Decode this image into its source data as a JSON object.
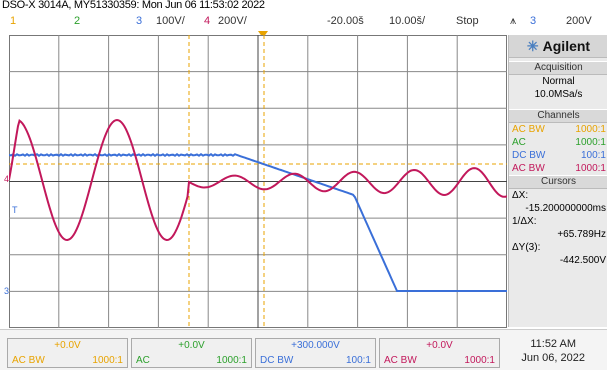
{
  "header": {
    "instrument_line": "DSO-X 3014A, MY51330359: Mon Jun 06 11:53:02 2022"
  },
  "statusbar": {
    "ch1_num": "1",
    "ch2_num": "2",
    "ch3_num": "3",
    "ch3_scale": "100V/",
    "ch4_num": "4",
    "ch4_scale": "200V/",
    "time_delay": "-20.00š",
    "time_scale": "10.00š/",
    "run_state": "Stop",
    "trig_icon": "⩚",
    "trig_source": "3",
    "trig_level": "200V"
  },
  "colors": {
    "ch1": "#e8a300",
    "ch2": "#2ca02c",
    "ch3": "#3a6fd8",
    "ch4": "#c2185b"
  },
  "screen_markers": {
    "ch4_marker": "4",
    "trig_t_marker": "T",
    "ch3_marker": "3"
  },
  "panel": {
    "brand": "Agilent",
    "brand_icon": "sparkle-icon",
    "acquisition_title": "Acquisition",
    "acq_mode": "Normal",
    "acq_rate": "10.0MSa/s",
    "channels_title": "Channels",
    "channels": [
      {
        "coupling": "AC BW",
        "probe": "1000:1",
        "color": "#e8a300"
      },
      {
        "coupling": "AC",
        "probe": "1000:1",
        "color": "#2ca02c"
      },
      {
        "coupling": "DC BW",
        "probe": "100:1",
        "color": "#3a6fd8"
      },
      {
        "coupling": "AC BW",
        "probe": "1000:1",
        "color": "#c2185b"
      }
    ],
    "cursors_title": "Cursors",
    "dx_label": "ΔX:",
    "dx_value": "-15.200000000ms",
    "inv_dx_label": "1/ΔX:",
    "inv_dx_value": "+65.789Hz",
    "dy_label": "ΔY(3):",
    "dy_value": "-442.500V"
  },
  "bottom": {
    "channels": [
      {
        "offset": "+0.0V",
        "coupling": "AC  BW",
        "probe": "1000:1",
        "color": "#e8a300"
      },
      {
        "offset": "+0.0V",
        "coupling": "AC",
        "probe": "1000:1",
        "color": "#2ca02c"
      },
      {
        "offset": "+300.000V",
        "coupling": "DC  BW",
        "probe": "100:1",
        "color": "#3a6fd8"
      },
      {
        "offset": "+0.0V",
        "coupling": "AC  BW",
        "probe": "1000:1",
        "color": "#c2185b"
      }
    ],
    "time": "11:52 AM",
    "date": "Jun 06, 2022"
  }
}
